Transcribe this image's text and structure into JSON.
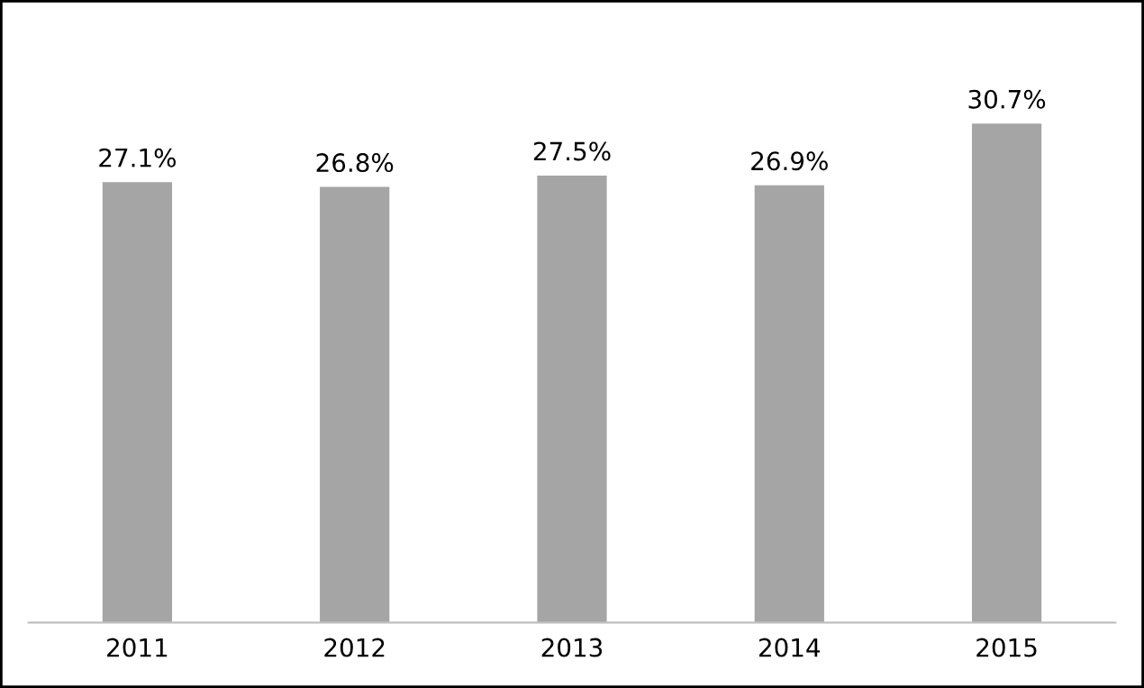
{
  "chart_data": {
    "type": "bar",
    "categories": [
      "2011",
      "2012",
      "2013",
      "2014",
      "2015"
    ],
    "values": [
      27.1,
      26.8,
      27.5,
      26.9,
      30.7
    ],
    "value_labels": [
      "27.1%",
      "26.8%",
      "27.5%",
      "26.9%",
      "30.7%"
    ],
    "color": "#a5a5a5",
    "grid": false,
    "legend": false
  }
}
